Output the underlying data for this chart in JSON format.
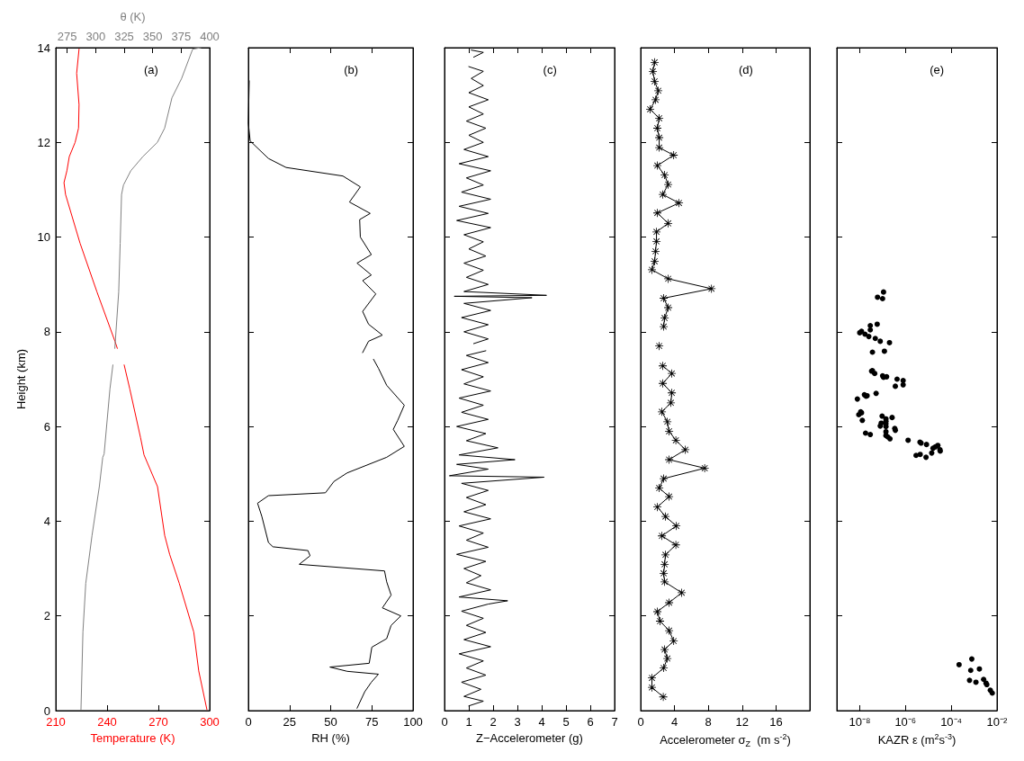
{
  "chart_data": [
    {
      "type": "line",
      "ylabel": "Height (km)",
      "xlabel": "Temperature (K)",
      "x2label": "θ (K)",
      "annotations": [
        "(a)"
      ],
      "ylim": [
        0,
        14
      ],
      "yticks": [
        0,
        2,
        4,
        6,
        8,
        10,
        12,
        14
      ],
      "xlim": [
        210,
        300
      ],
      "xticks": [
        210,
        240,
        270,
        300
      ],
      "x2lim": [
        265,
        400
      ],
      "x2ticks": [
        275,
        300,
        325,
        350,
        375,
        400
      ],
      "marker": "none",
      "line_style": "solid",
      "series": [
        {
          "color": "#ff0000",
          "x": [
            298.4,
            293.6,
            290.7,
            282.2,
            276.6,
            273.7,
            269.5,
            261.6,
            259.6,
            253.3,
            250,
            null,
            246,
            244.6,
            234.1,
            224.2,
            215.7,
            214.8,
            216.5,
            217.9,
            221.3,
            223.3,
            223.6,
            222.2,
            223.6
          ],
          "values": [
            0.02,
            0.84,
            1.66,
            2.69,
            3.3,
            3.7,
            4.73,
            5.4,
            5.76,
            6.79,
            7.3,
            null,
            7.65,
            7.8,
            8.84,
            9.87,
            10.9,
            11.15,
            11.4,
            11.7,
            12,
            12.3,
            12.8,
            13.46,
            13.97
          ]
        },
        {
          "color": "#808080",
          "axis": "x2",
          "x": [
            287.1,
            288.8,
            291.3,
            296.8,
            303.2,
            306.2,
            307.4,
            312.5,
            315.1,
            null,
            316.8,
            320.2,
            321.5,
            322.7,
            324.4,
            330.8,
            341.4,
            354.1,
            360.5,
            366.9,
            375.4,
            385.1,
            392.3
          ],
          "values": [
            0.02,
            1.66,
            2.69,
            3.7,
            4.73,
            5.35,
            5.42,
            6.79,
            7.3,
            null,
            7.65,
            8.84,
            9.87,
            10.9,
            11.1,
            11.4,
            11.7,
            12,
            12.3,
            12.94,
            13.35,
            13.97,
            14
          ]
        }
      ]
    },
    {
      "type": "line",
      "xlabel": "RH (%)",
      "annotations": [
        "(b)"
      ],
      "ylim": [
        0,
        14
      ],
      "yticks": [
        0,
        2,
        4,
        6,
        8,
        10,
        12,
        14
      ],
      "xlim": [
        0,
        100
      ],
      "xticks": [
        0,
        25,
        50,
        75,
        100
      ],
      "tick_labels": "x",
      "marker": "none",
      "line_style": "solid",
      "series": [
        {
          "color": "#000000",
          "x": [
            66,
            70.7,
            74.7,
            79,
            60,
            49.5,
            73.4,
            75,
            84,
            86.7,
            92.6,
            81.4,
            86.7,
            84,
            82.7,
            30.9,
            37.5,
            36.2,
            14.9,
            12.2,
            8.2,
            5.6,
            12.2,
            46.8,
            52,
            60,
            84,
            94.7,
            88,
            90.7,
            94.7,
            84,
            79,
            76,
            null,
            69.4,
            73,
            81.4,
            73,
            69.4,
            77.4,
            69.4,
            74.7,
            66,
            74.7,
            68,
            67.6,
            74,
            61.4,
            68,
            57.4,
            22.9,
            12.2,
            1.1,
            0,
            0.5
          ],
          "values": [
            0.05,
            0.4,
            0.6,
            0.77,
            0.83,
            0.92,
            1.0,
            1.34,
            1.52,
            1.8,
            2.0,
            2.17,
            2.44,
            2.72,
            2.95,
            3.09,
            3.27,
            3.38,
            3.46,
            3.55,
            4.1,
            4.38,
            4.54,
            4.6,
            4.84,
            5.02,
            5.35,
            5.58,
            5.94,
            6.13,
            6.45,
            6.87,
            7.23,
            7.42,
            null,
            7.56,
            7.8,
            7.93,
            8.16,
            8.43,
            8.8,
            9.08,
            9.2,
            9.45,
            9.63,
            10.0,
            10.37,
            10.5,
            10.74,
            11.06,
            11.29,
            11.47,
            11.66,
            12.03,
            12.4,
            13.3
          ]
        }
      ]
    },
    {
      "type": "line",
      "xlabel": "Z−Accelerometer (g)",
      "annotations": [
        "(c)"
      ],
      "ylim": [
        0,
        14
      ],
      "yticks": [
        0,
        2,
        4,
        6,
        8,
        10,
        12,
        14
      ],
      "xlim": [
        0,
        7
      ],
      "xticks": [
        0,
        1,
        2,
        3,
        4,
        5,
        6,
        7
      ],
      "tick_labels": "x",
      "marker": "none",
      "line_style": "solid",
      "series": [
        {
          "color": "#000000",
          "x": [
            1.0,
            1.6,
            0.8,
            1.5,
            0.7,
            1.7,
            0.9,
            1.6,
            0.6,
            1.9,
            0.8,
            1.7,
            0.9,
            1.6,
            0.7,
            1.8,
            2.6,
            0.6,
            1.9,
            0.9,
            1.5,
            0.8,
            1.7,
            0.5,
            1.8,
            0.9,
            1.6,
            0.6,
            1.9,
            0.8,
            1.7,
            0.9,
            1.8,
            0.7,
            4.1,
            0.2,
            1.8,
            0.5,
            2.9,
            0.6,
            2.2,
            0.9,
            1.7,
            0.5,
            1.8,
            0.7,
            1.6,
            0.6,
            1.9,
            0.8,
            1.6,
            0.7,
            1.8,
            0.9,
            1.7,
            null,
            1.2,
            1.8,
            0.8,
            1.8,
            0.7,
            1.9,
            0.8,
            3.6,
            0.4,
            4.2,
            0.8,
            1.8,
            0.9,
            1.6,
            0.8,
            1.7,
            1.0,
            1.6,
            0.8,
            1.9,
            0.5,
            1.8,
            0.6,
            1.9,
            0.7,
            1.6,
            0.9,
            1.9,
            0.6,
            1.8,
            0.8,
            1.6,
            1.0,
            1.7,
            0.9,
            1.6,
            1.0,
            1.8,
            1.0,
            1.6,
            1.1,
            1.6,
            1.0,
            null,
            1.2,
            1.6,
            1.1
          ],
          "values": [
            0.1,
            0.2,
            0.3,
            0.45,
            0.6,
            0.75,
            0.9,
            1.05,
            1.2,
            1.35,
            1.5,
            1.65,
            1.8,
            1.95,
            2.1,
            2.25,
            2.32,
            2.4,
            2.55,
            2.7,
            2.85,
            3.0,
            3.15,
            3.3,
            3.45,
            3.6,
            3.75,
            3.9,
            4.05,
            4.2,
            4.35,
            4.5,
            4.65,
            4.8,
            4.93,
            4.96,
            5.1,
            5.2,
            5.3,
            5.4,
            5.55,
            5.7,
            5.85,
            6.0,
            6.15,
            6.3,
            6.45,
            6.6,
            6.75,
            6.9,
            7.05,
            7.2,
            7.35,
            7.5,
            7.6,
            null,
            7.75,
            7.85,
            8.0,
            8.15,
            8.3,
            8.45,
            8.6,
            8.72,
            8.75,
            8.77,
            8.85,
            9.0,
            9.15,
            9.3,
            9.45,
            9.6,
            9.75,
            9.9,
            10.05,
            10.2,
            10.35,
            10.5,
            10.65,
            10.8,
            10.95,
            11.1,
            11.25,
            11.4,
            11.55,
            11.7,
            11.85,
            12.0,
            12.15,
            12.3,
            12.45,
            12.6,
            12.75,
            12.9,
            13.05,
            13.2,
            13.35,
            13.5,
            13.6,
            null,
            13.8,
            13.9,
            13.95
          ]
        }
      ]
    },
    {
      "type": "line",
      "xlabel": "Accelerometer σ$_{Z}$  (m s$^{-2}$)",
      "annotations": [
        "(d)"
      ],
      "ylim": [
        0,
        14
      ],
      "yticks": [
        0,
        2,
        4,
        6,
        8,
        10,
        12,
        14
      ],
      "xlim": [
        0,
        20
      ],
      "xticks": [
        0,
        4,
        8,
        12,
        16
      ],
      "tick_labels": "x",
      "marker": "star",
      "line_style": "solid",
      "series": [
        {
          "color": "#000000",
          "x": [
            2.67,
            1.33,
            1.33,
            2.72,
            3.15,
            2.83,
            3.9,
            3.36,
            2.29,
            1.97,
            3.36,
            4.85,
            2.83,
            2.72,
            2.83,
            2.93,
            4.16,
            2.51,
            4.21,
            2.93,
            1.97,
            3.36,
            2.19,
            2.72,
            7.57,
            3.36,
            5.28,
            4.16,
            3.36,
            3.15,
            2.51,
            3.57,
            3.68,
            2.61,
            3.68,
            2.61,
            null,
            2.19,
            null,
            2.72,
            2.83,
            3.25,
            2.72,
            8.37,
            3.25,
            1.33,
            1.65,
            1.76,
            1.87,
            1.87,
            3.25,
            1.97,
            4.53,
            2.61,
            3.25,
            2.83,
            1.97,
            3.9,
            2.19,
            2.19,
            1.97,
            2.19,
            1.12,
            1.76,
            2.08,
            1.65,
            1.44,
            1.65
          ],
          "values": [
            0.29,
            0.49,
            0.69,
            0.9,
            1.1,
            1.29,
            1.47,
            1.69,
            1.89,
            2.09,
            2.28,
            2.49,
            2.72,
            2.9,
            3.09,
            3.29,
            3.5,
            3.69,
            3.9,
            4.1,
            4.3,
            4.52,
            4.7,
            4.9,
            5.12,
            5.3,
            5.51,
            5.71,
            5.9,
            6.1,
            6.31,
            6.5,
            6.71,
            6.91,
            7.12,
            7.28,
            null,
            7.7,
            null,
            8.11,
            8.29,
            8.51,
            8.71,
            8.91,
            9.12,
            9.31,
            9.49,
            9.7,
            9.91,
            10.11,
            10.29,
            10.51,
            10.72,
            10.9,
            11.11,
            11.31,
            11.51,
            11.73,
            11.89,
            12.1,
            12.3,
            12.51,
            12.7,
            12.9,
            13.09,
            13.29,
            13.5,
            13.69
          ]
        }
      ]
    },
    {
      "type": "scatter",
      "xlabel": "KAZR ε (m$^{2}$s$^{-3}$)",
      "annotations": [
        "(e)"
      ],
      "ylim": [
        0,
        14
      ],
      "yticks": [
        0,
        2,
        4,
        6,
        8,
        10,
        12,
        14
      ],
      "xlim": [
        1e-09,
        0.01
      ],
      "xticks": [
        {
          "value": 1e-08,
          "label": "10⁻⁸"
        },
        {
          "value": 1e-06,
          "label": "10⁻⁶"
        },
        {
          "value": 0.0001,
          "label": "10⁻⁴"
        },
        {
          "value": 0.01,
          "label": "10⁻²"
        }
      ],
      "log": "x",
      "tick_labels": "x",
      "marker": "circle",
      "series": [
        {
          "color": "#000000",
          "x": [
            1.1e-07,
            6e-08,
            1e-07,
            5.8e-08,
            2.9e-08,
            2.9e-08,
            1e-08,
            1.2e-08,
            1.7e-08,
            2.5e-08,
            4.8e-08,
            7.9e-08,
            2e-07,
            3.6e-08,
            1.2e-07,
            3.3e-08,
            3.6e-08,
            4.5e-08,
            1e-07,
            1.1e-07,
            1.5e-07,
            4.3e-07,
            7.9e-07,
            7.9e-07,
            3.6e-07,
            1.6e-08,
            1.9e-08,
            2.1e-08,
            5.2e-08,
            7.9e-09,
            1.1e-08,
            1.2e-08,
            9.1e-09,
            1.3e-08,
            9.5e-08,
            2.6e-07,
            1.4e-07,
            1.4e-07,
            8.7e-08,
            1.4e-07,
            7.9e-08,
            1.4e-07,
            3.4e-07,
            3.6e-07,
            1.4e-07,
            1.8e-08,
            2.9e-08,
            1.4e-07,
            1.7e-07,
            2.1e-07,
            1.3e-06,
            4.3e-06,
            4.8e-06,
            8.3e-06,
            1.6e-05,
            2e-05,
            2.6e-05,
            3.2e-05,
            3.3e-05,
            1.4e-05,
            7.9e-06,
            4.4e-06,
            2.9e-06,
            0.00079,
            0.00022,
            0.0017,
            0.00071,
            0.0026,
            0.00063,
            0.0012,
            0.0033,
            0.0036,
            0.0051,
            0.0062
          ],
          "values": [
            8.84,
            8.73,
            8.7,
            8.16,
            8.13,
            8.04,
            7.98,
            8.01,
            7.95,
            7.9,
            7.86,
            7.8,
            7.77,
            7.57,
            7.59,
            7.17,
            7.18,
            7.12,
            7.07,
            7.04,
            7.05,
            7.0,
            6.97,
            6.88,
            6.85,
            6.67,
            6.64,
            6.65,
            6.7,
            6.58,
            6.31,
            6.29,
            6.25,
            6.13,
            6.22,
            6.19,
            6.16,
            6.11,
            6.07,
            6.06,
            6.01,
            6.0,
            5.96,
            5.92,
            5.89,
            5.86,
            5.83,
            5.81,
            5.78,
            5.74,
            5.71,
            5.67,
            5.65,
            5.62,
            5.54,
            5.57,
            5.6,
            5.51,
            5.48,
            5.44,
            5.35,
            5.41,
            5.39,
            1.09,
            0.97,
            0.88,
            0.85,
            0.66,
            0.64,
            0.6,
            0.58,
            0.55,
            0.43,
            0.37
          ]
        }
      ]
    }
  ]
}
